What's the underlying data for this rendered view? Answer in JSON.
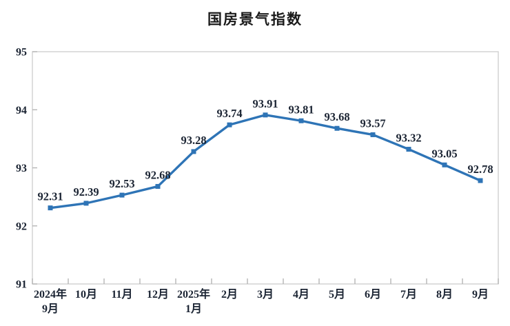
{
  "chart_data": {
    "type": "line",
    "title": "国房景气指数",
    "categories": [
      "2024年\n9月",
      "10月",
      "11月",
      "12月",
      "2025年\n1月",
      "2月",
      "3月",
      "4月",
      "5月",
      "6月",
      "7月",
      "8月",
      "9月"
    ],
    "values": [
      92.31,
      92.39,
      92.53,
      92.68,
      93.28,
      93.74,
      93.91,
      93.81,
      93.68,
      93.57,
      93.32,
      93.05,
      92.78
    ],
    "yticks": [
      91,
      92,
      93,
      94,
      95
    ],
    "ylim": [
      91,
      95
    ],
    "xlabel": "",
    "ylabel": "",
    "grid": false,
    "legend_position": "none",
    "data_labels": true,
    "marker": "square",
    "line_color": "#2E74B6",
    "text_color": "#1b2433",
    "axis_text_color": "#1b2433",
    "border_color": "#cfcfcf",
    "tick_color": "#b5b5b5"
  }
}
